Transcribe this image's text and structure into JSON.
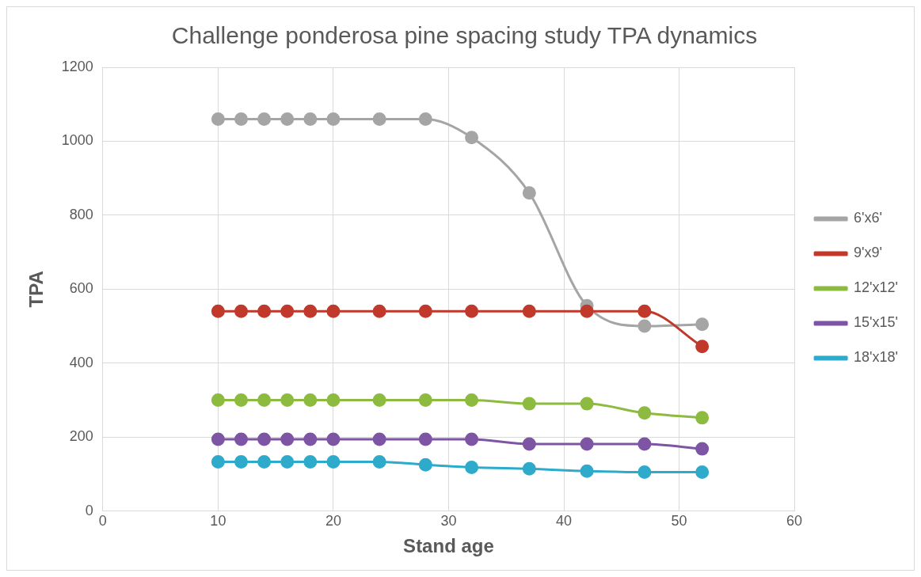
{
  "chart_data": {
    "type": "line",
    "title": "Challenge ponderosa pine spacing study TPA dynamics",
    "xlabel": "Stand age",
    "ylabel": "TPA",
    "x": [
      10,
      12,
      14,
      16,
      18,
      20,
      24,
      28,
      32,
      37,
      42,
      47,
      52
    ],
    "xlim": [
      0,
      60
    ],
    "xticks": [
      0,
      10,
      20,
      30,
      40,
      50,
      60
    ],
    "ylim": [
      0,
      1200
    ],
    "yticks": [
      0,
      200,
      400,
      600,
      800,
      1000,
      1200
    ],
    "grid": true,
    "legend": "right",
    "marker": "circle",
    "series": [
      {
        "name": "6'x6'",
        "color": "#a5a5a5",
        "values": [
          1060,
          1060,
          1060,
          1060,
          1060,
          1060,
          1060,
          1060,
          1010,
          860,
          555,
          500,
          505
        ]
      },
      {
        "name": "9'x9'",
        "color": "#c0392b",
        "values": [
          540,
          540,
          540,
          540,
          540,
          540,
          540,
          540,
          540,
          540,
          540,
          540,
          445
        ]
      },
      {
        "name": "12'x12'",
        "color": "#8cbb3f",
        "values": [
          300,
          300,
          300,
          300,
          300,
          300,
          300,
          300,
          300,
          290,
          290,
          265,
          252
        ]
      },
      {
        "name": "15'x15'",
        "color": "#7e55a5",
        "values": [
          194,
          194,
          194,
          194,
          194,
          194,
          194,
          194,
          194,
          181,
          181,
          181,
          168
        ]
      },
      {
        "name": "18'x18'",
        "color": "#2eaacb",
        "values": [
          133,
          133,
          133,
          133,
          133,
          133,
          133,
          125,
          118,
          114,
          108,
          105,
          105
        ]
      }
    ]
  }
}
